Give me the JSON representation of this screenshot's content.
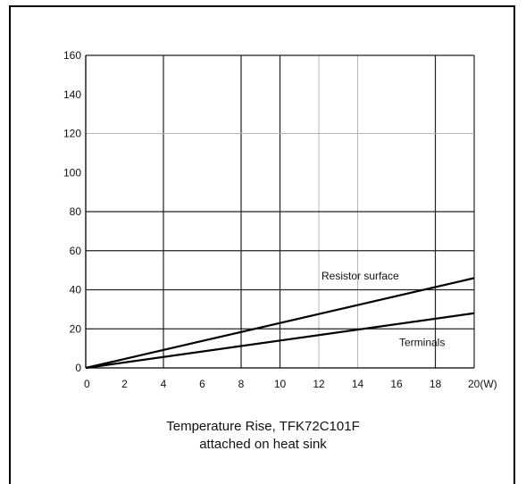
{
  "chart_data": {
    "type": "line",
    "title": "",
    "caption": [
      "Temperature Rise, TFK72C101F",
      "attached on heat  sink"
    ],
    "xlabel": "",
    "ylabel": "",
    "xlim": [
      0,
      20
    ],
    "ylim": [
      0,
      160
    ],
    "x_ticks": [
      0,
      2,
      4,
      6,
      8,
      10,
      12,
      14,
      16,
      18,
      20
    ],
    "x_tick_labels": [
      "0",
      "2",
      "4",
      "6",
      "8",
      "10",
      "12",
      "14",
      "16",
      "18",
      "20(W)"
    ],
    "y_ticks": [
      0,
      20,
      40,
      60,
      80,
      100,
      120,
      140,
      160
    ],
    "y_tick_labels": [
      "0",
      "20",
      "40",
      "60",
      "80",
      "100",
      "120",
      "140",
      "160"
    ],
    "grid_x": [
      4,
      8,
      10,
      12,
      14,
      18,
      20
    ],
    "grid_y": [
      20,
      40,
      60,
      80,
      120,
      160
    ],
    "grid": true,
    "series": [
      {
        "name": "Resistor surface",
        "x": [
          0,
          20
        ],
        "y": [
          0,
          46
        ],
        "label_at": [
          12,
          47
        ]
      },
      {
        "name": "Terminals",
        "x": [
          0,
          20
        ],
        "y": [
          0,
          28
        ],
        "label_at": [
          16,
          13
        ]
      }
    ]
  }
}
